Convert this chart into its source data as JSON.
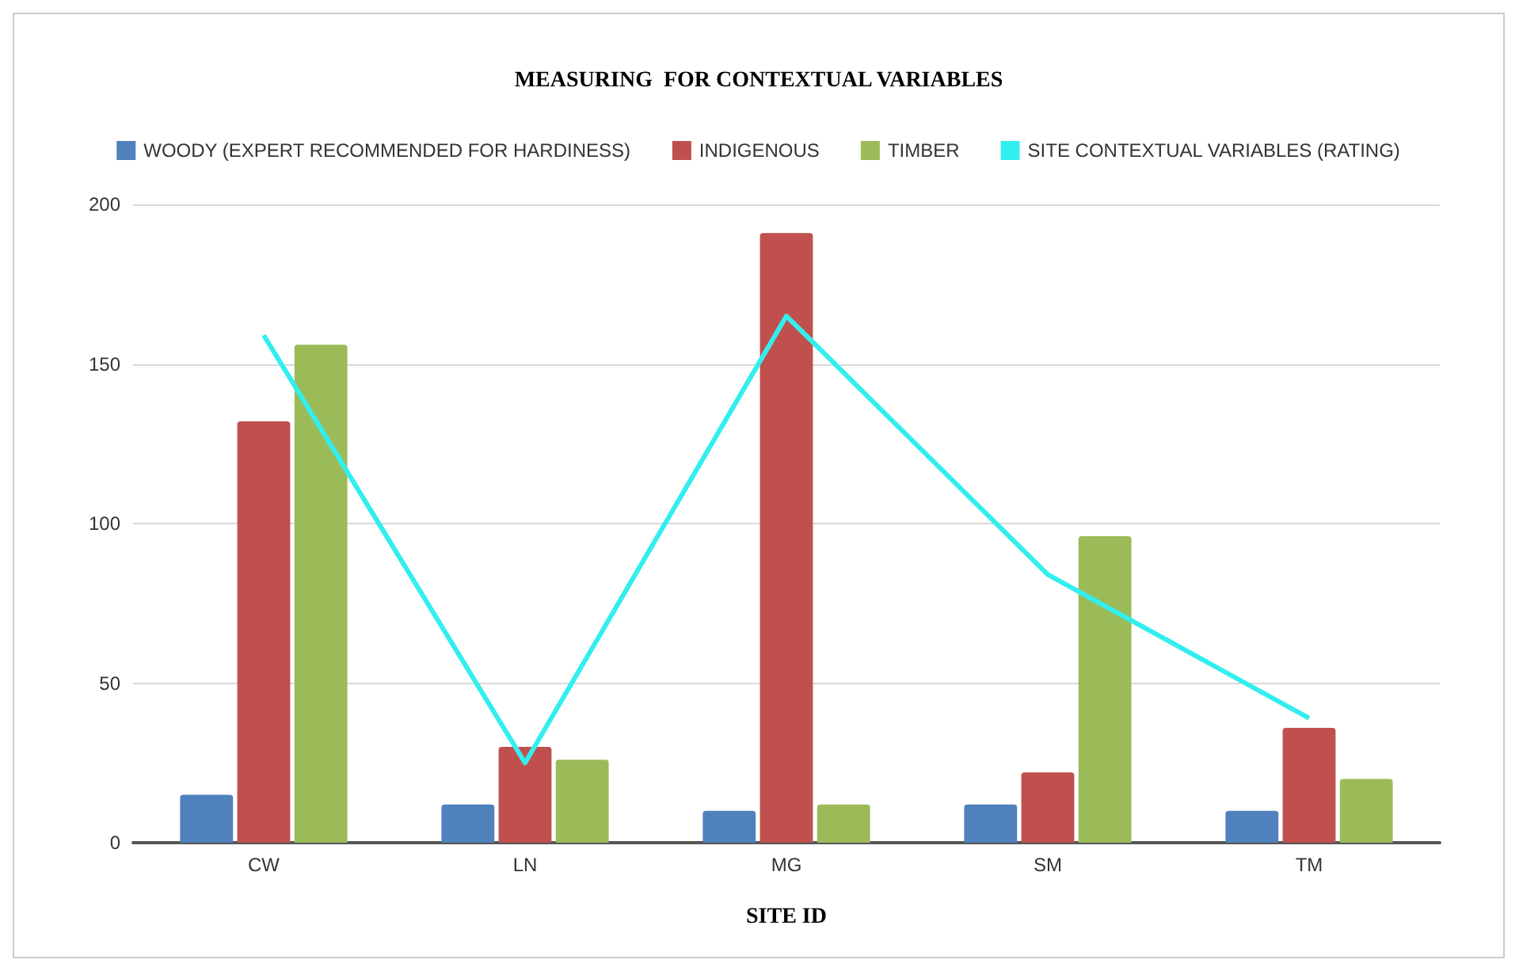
{
  "chart_data": {
    "type": "bar",
    "title": "MEASURING  FOR CONTEXTUAL VARIABLES",
    "xlabel": "SITE ID",
    "categories": [
      "CW",
      "LN",
      "MG",
      "SM",
      "TM"
    ],
    "series": [
      {
        "name": "WOODY (EXPERT RECOMMENDED FOR HARDINESS)",
        "color": "#4f81bd",
        "values": [
          15,
          12,
          10,
          12,
          10
        ]
      },
      {
        "name": "INDIGENOUS",
        "color": "#c0504d",
        "values": [
          132,
          30,
          191,
          22,
          36
        ]
      },
      {
        "name": "TIMBER",
        "color": "#9bbb59",
        "values": [
          156,
          26,
          12,
          96,
          20
        ]
      },
      {
        "name": "SITE CONTEXTUAL VARIABLES (RATING)",
        "type": "line",
        "color": "#33eeee",
        "values": [
          159,
          25,
          165,
          84,
          39
        ]
      }
    ],
    "ylim": [
      0,
      200
    ],
    "yticks": [
      0,
      50,
      100,
      150,
      200
    ],
    "grid": "y",
    "legend": "top",
    "marker": "none"
  }
}
